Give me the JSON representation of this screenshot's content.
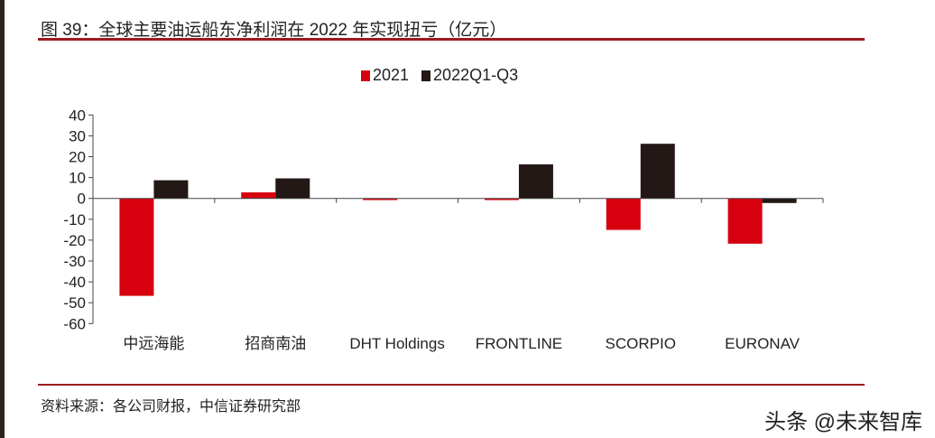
{
  "title": "图 39：全球主要油运船东净利润在 2022 年实现扭亏（亿元）",
  "source": "资料来源：各公司财报，中信证券研究部",
  "watermark": "头条 @未来智库",
  "colors": {
    "rule": "#9b1b1f",
    "series_2021": "#d7000f",
    "series_2022": "#231815"
  },
  "chart_data": {
    "type": "bar",
    "categories": [
      "中远海能",
      "招商南油",
      "DHT Holdings",
      "FRONTLINE",
      "SCORPIO",
      "EURONAV"
    ],
    "series": [
      {
        "name": "2021",
        "values": [
          -46.7,
          2.9,
          -0.8,
          -0.8,
          -15.1,
          -21.7
        ]
      },
      {
        "name": "2022Q1-Q3",
        "values": [
          8.7,
          9.6,
          0,
          16.3,
          26.2,
          -2.2
        ]
      }
    ],
    "ylim": [
      -60,
      40
    ],
    "yticks": [
      40,
      30,
      20,
      10,
      0,
      -10,
      -20,
      -30,
      -40,
      -50,
      -60
    ],
    "grid": false,
    "legend": "top-center"
  }
}
